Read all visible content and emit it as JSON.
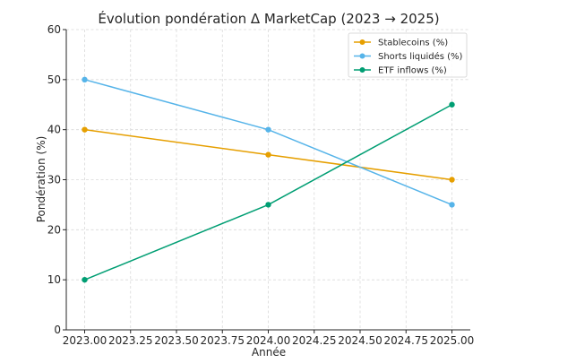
{
  "chart_data": {
    "type": "line",
    "title": "Évolution pondération Δ MarketCap (2023 → 2025)",
    "xlabel": "Année",
    "ylabel": "Pondération (%)",
    "x": [
      2023,
      2024,
      2025
    ],
    "xlim": [
      2022.9,
      2025.1
    ],
    "ylim": [
      0,
      60
    ],
    "xticks": [
      2023.0,
      2023.25,
      2023.5,
      2023.75,
      2024.0,
      2024.25,
      2024.5,
      2024.75,
      2025.0
    ],
    "xtick_labels": [
      "2023.00",
      "2023.25",
      "2023.50",
      "2023.75",
      "2024.00",
      "2024.25",
      "2024.50",
      "2024.75",
      "2025.00"
    ],
    "yticks": [
      0,
      10,
      20,
      30,
      40,
      50,
      60
    ],
    "ytick_labels": [
      "0",
      "10",
      "20",
      "30",
      "40",
      "50",
      "60"
    ],
    "grid": true,
    "legend_position": "top-right",
    "series": [
      {
        "name": "Stablecoins (%)",
        "values": [
          40,
          35,
          30
        ],
        "color": "#E69F00",
        "marker": "circle"
      },
      {
        "name": "Shorts liquidés (%)",
        "values": [
          50,
          40,
          25
        ],
        "color": "#56B4E9",
        "marker": "circle"
      },
      {
        "name": "ETF inflows (%)",
        "values": [
          10,
          25,
          45
        ],
        "color": "#009E73",
        "marker": "circle"
      }
    ]
  }
}
